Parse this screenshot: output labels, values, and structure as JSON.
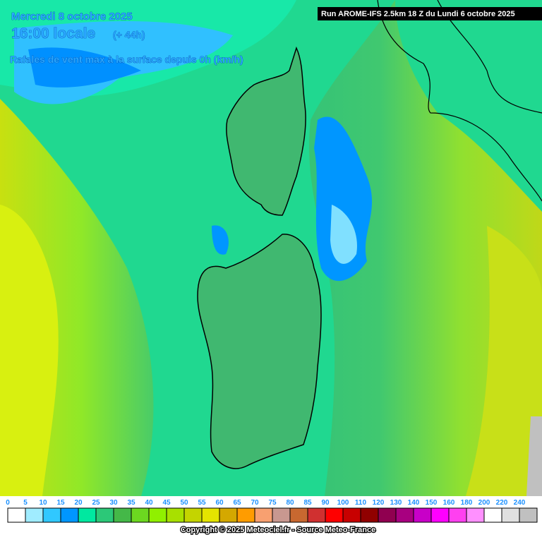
{
  "header": {
    "date": "Mercredi 8 octobre 2025",
    "time": "16:00 locale",
    "lead": "(+ 44h)",
    "parameter": "Rafales de vent max à la surface depuis 0h (km/h)",
    "run": "Run AROME-IFS 2.5km 18 Z du Lundi 6 octobre 2025"
  },
  "scale": {
    "labels": [
      0,
      5,
      10,
      15,
      20,
      25,
      30,
      35,
      40,
      45,
      50,
      55,
      60,
      65,
      70,
      75,
      80,
      85,
      90,
      100,
      110,
      120,
      130,
      140,
      150,
      160,
      180,
      200,
      220,
      240
    ],
    "colors": [
      "#ffffff",
      "#a0ecff",
      "#30c8ff",
      "#0096ff",
      "#00e8a0",
      "#2cc878",
      "#44b848",
      "#6cd820",
      "#90f000",
      "#a8e000",
      "#c4d400",
      "#e4e400",
      "#d4a800",
      "#ff9c00",
      "#f8a070",
      "#c89890",
      "#c86830",
      "#d03030",
      "#ff0000",
      "#c80000",
      "#900000",
      "#900050",
      "#a80080",
      "#c800c8",
      "#ff00ff",
      "#ff40f0",
      "#ff90ff",
      "#ffffff",
      "#e0e0e0",
      "#c0c0c0"
    ]
  },
  "footer": {
    "copyright": "Copyright © 2025 Meteociel.fr - Source Meteo-France"
  }
}
